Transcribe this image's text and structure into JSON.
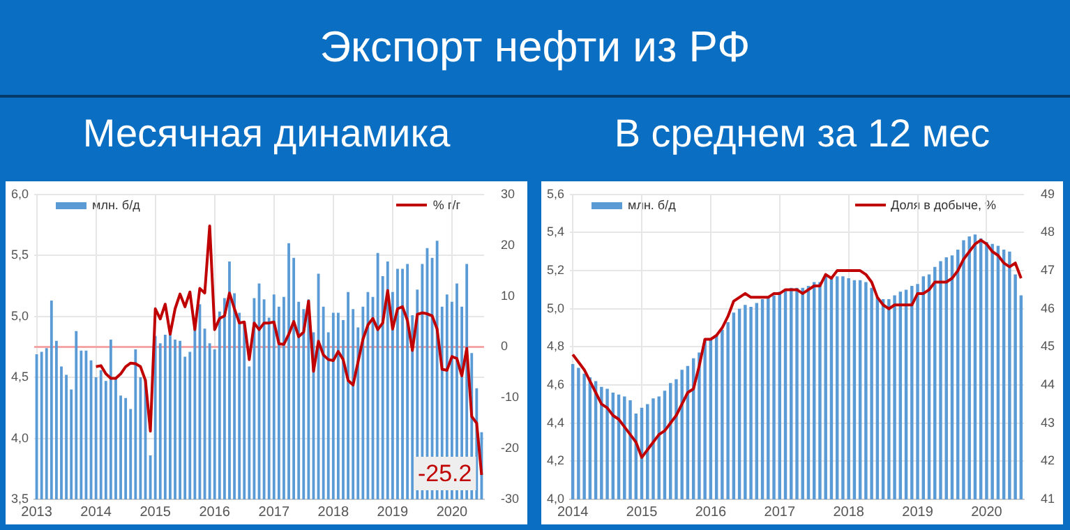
{
  "chart_data": [
    {
      "type": "bar",
      "title": "Экспорт нефти из РФ",
      "subtitle": "Месячная динамика",
      "categories": [
        "2013",
        null,
        null,
        null,
        null,
        null,
        null,
        null,
        null,
        null,
        null,
        null,
        "2014",
        null,
        null,
        null,
        null,
        null,
        null,
        null,
        null,
        null,
        null,
        null,
        "2015",
        null,
        null,
        null,
        null,
        null,
        null,
        null,
        null,
        null,
        null,
        null,
        "2016",
        null,
        null,
        null,
        null,
        null,
        null,
        null,
        null,
        null,
        null,
        null,
        "2017",
        null,
        null,
        null,
        null,
        null,
        null,
        null,
        null,
        null,
        null,
        null,
        "2018",
        null,
        null,
        null,
        null,
        null,
        null,
        null,
        null,
        null,
        null,
        null,
        "2019",
        null,
        null,
        null,
        null,
        null,
        null,
        null,
        null,
        null,
        null,
        null,
        "2020",
        null,
        null,
        null,
        null,
        null,
        null
      ],
      "series": [
        {
          "name": "млн. б/д",
          "type": "bar",
          "color": "#5b9bd5",
          "values": [
            4.69,
            4.71,
            4.74,
            5.13,
            4.8,
            4.59,
            4.52,
            4.4,
            4.88,
            4.72,
            4.72,
            4.64,
            4.5,
            4.56,
            4.47,
            4.81,
            4.5,
            4.35,
            4.33,
            4.24,
            4.73,
            4.5,
            4.48,
            3.86,
            4.84,
            4.78,
            4.85,
            4.87,
            4.81,
            4.8,
            4.67,
            4.71,
            4.9,
            5.1,
            4.9,
            4.78,
            4.73,
            5.04,
            5.15,
            5.45,
            5.19,
            5.03,
            4.95,
            4.59,
            5.15,
            5.27,
            5.14,
            4.99,
            5.18,
            5.08,
            5.16,
            5.6,
            5.48,
            5.12,
            5.06,
            5.14,
            4.87,
            5.35,
            5.08,
            4.87,
            5.03,
            5.03,
            4.97,
            5.2,
            5.06,
            4.91,
            5.08,
            5.2,
            5.16,
            5.52,
            5.33,
            5.45,
            5.2,
            5.39,
            5.39,
            5.43,
            5.01,
            5.22,
            5.43,
            5.56,
            5.48,
            5.62,
            5.08,
            5.18,
            5.12,
            5.27,
            5.08,
            5.43,
            4.7,
            4.41,
            4.05
          ]
        },
        {
          "name": "% г/г",
          "type": "line",
          "axis": "y2",
          "color": "#c00000",
          "values": [
            null,
            null,
            null,
            null,
            null,
            null,
            null,
            null,
            null,
            null,
            null,
            null,
            -3.9,
            -3.7,
            -5.3,
            -6.2,
            -6.2,
            -5.3,
            -3.9,
            -3.2,
            -3.3,
            -3.9,
            -6.6,
            -16.6,
            7.5,
            5.5,
            8.4,
            2.5,
            7.5,
            10.4,
            7.9,
            10.8,
            3.4,
            11.5,
            10.6,
            23.8,
            3.4,
            5.6,
            6.1,
            10.6,
            7.5,
            4.7,
            4.9,
            -2.5,
            4.7,
            3.4,
            4.7,
            4.7,
            4.9,
            0.6,
            0.5,
            2.5,
            5.0,
            2.0,
            2.9,
            9.0,
            -4.8,
            1.1,
            -1.6,
            -2.5,
            -2.7,
            -0.9,
            -2.5,
            -6.6,
            -7.5,
            -3.0,
            1.5,
            4.3,
            5.6,
            3.4,
            4.7,
            11.1,
            3.5,
            7.5,
            7.9,
            5.2,
            -0.7,
            6.4,
            6.7,
            6.5,
            6.1,
            3.5,
            -4.4,
            -4.6,
            -1.9,
            -2.3,
            -5.7,
            -0.3,
            -13.7,
            -15.0,
            -25.2
          ]
        }
      ],
      "ylim": [
        3.5,
        6.0
      ],
      "yticks": [
        {
          "value": 3.5,
          "label": "3,5"
        },
        {
          "value": 4.0,
          "label": "4,0"
        },
        {
          "value": 4.5,
          "label": "4,5"
        },
        {
          "value": 5.0,
          "label": "5,0"
        },
        {
          "value": 5.5,
          "label": "5,5"
        },
        {
          "value": 6.0,
          "label": "6,0"
        }
      ],
      "y2lim": [
        -30,
        30
      ],
      "y2ticks": [
        -30,
        -20,
        -10,
        0,
        10,
        20,
        30
      ],
      "ref_lines": [
        {
          "axis": "y2",
          "value": 0,
          "color": "#f4a6a6"
        }
      ],
      "annotations": [
        "-25.2"
      ],
      "grid": true,
      "legend": "top",
      "marker": "none",
      "line_style": "solid"
    },
    {
      "type": "bar",
      "subtitle": "В среднем за 12 мес",
      "categories": [
        "2014",
        null,
        null,
        null,
        null,
        null,
        null,
        null,
        null,
        null,
        null,
        null,
        "2015",
        null,
        null,
        null,
        null,
        null,
        null,
        null,
        null,
        null,
        null,
        null,
        "2016",
        null,
        null,
        null,
        null,
        null,
        null,
        null,
        null,
        null,
        null,
        null,
        "2017",
        null,
        null,
        null,
        null,
        null,
        null,
        null,
        null,
        null,
        null,
        null,
        "2018",
        null,
        null,
        null,
        null,
        null,
        null,
        null,
        null,
        null,
        null,
        null,
        "2019",
        null,
        null,
        null,
        null,
        null,
        null,
        null,
        null,
        null,
        null,
        null,
        "2020",
        null,
        null,
        null,
        null,
        null,
        null
      ],
      "series": [
        {
          "name": "млн. б/д",
          "type": "bar",
          "color": "#5b9bd5",
          "values": [
            4.71,
            4.69,
            4.66,
            4.64,
            4.62,
            4.59,
            4.58,
            4.56,
            4.55,
            4.54,
            4.52,
            4.45,
            4.48,
            4.5,
            4.53,
            4.54,
            4.57,
            4.61,
            4.63,
            4.68,
            4.7,
            4.74,
            4.77,
            4.84,
            4.84,
            4.86,
            4.89,
            4.93,
            4.98,
            5.0,
            5.02,
            5.01,
            5.03,
            5.05,
            5.06,
            5.07,
            5.09,
            5.1,
            5.11,
            5.11,
            5.11,
            5.12,
            5.14,
            5.14,
            5.18,
            5.17,
            5.17,
            5.17,
            5.16,
            5.15,
            5.15,
            5.14,
            5.11,
            5.06,
            5.05,
            5.05,
            5.07,
            5.09,
            5.1,
            5.12,
            5.13,
            5.17,
            5.18,
            5.22,
            5.25,
            5.27,
            5.28,
            5.31,
            5.36,
            5.38,
            5.39,
            5.37,
            5.35,
            5.34,
            5.33,
            5.31,
            5.3,
            5.18,
            5.07
          ]
        },
        {
          "name": "Доля в добыче, %",
          "type": "line",
          "axis": "y2",
          "color": "#c00000",
          "values": [
            44.8,
            44.6,
            44.4,
            44.1,
            43.8,
            43.5,
            43.4,
            43.2,
            43.1,
            42.9,
            42.7,
            42.5,
            42.1,
            42.3,
            42.5,
            42.7,
            42.8,
            43.0,
            43.2,
            43.5,
            43.8,
            43.9,
            44.5,
            45.2,
            45.2,
            45.3,
            45.5,
            45.8,
            46.2,
            46.3,
            46.4,
            46.3,
            46.3,
            46.3,
            46.3,
            46.4,
            46.4,
            46.5,
            46.5,
            46.5,
            46.4,
            46.5,
            46.6,
            46.6,
            46.9,
            46.8,
            47.0,
            47.0,
            47.0,
            47.0,
            47.0,
            46.9,
            46.7,
            46.3,
            46.1,
            46.0,
            46.1,
            46.1,
            46.1,
            46.1,
            46.4,
            46.4,
            46.5,
            46.7,
            46.7,
            46.7,
            46.8,
            47.0,
            47.3,
            47.5,
            47.7,
            47.8,
            47.7,
            47.5,
            47.4,
            47.2,
            47.1,
            47.2,
            46.8
          ]
        }
      ],
      "ylim": [
        4.0,
        5.6
      ],
      "yticks": [
        {
          "value": 4.0,
          "label": "4,0"
        },
        {
          "value": 4.2,
          "label": "4,2"
        },
        {
          "value": 4.4,
          "label": "4,4"
        },
        {
          "value": 4.6,
          "label": "4,6"
        },
        {
          "value": 4.8,
          "label": "4,8"
        },
        {
          "value": 5.0,
          "label": "5,0"
        },
        {
          "value": 5.2,
          "label": "5,2"
        },
        {
          "value": 5.4,
          "label": "5,4"
        },
        {
          "value": 5.6,
          "label": "5,6"
        }
      ],
      "y2lim": [
        41,
        49
      ],
      "y2ticks": [
        41,
        42,
        43,
        44,
        45,
        46,
        47,
        48,
        49
      ],
      "grid": true,
      "legend": "top",
      "marker": "none",
      "line_style": "solid"
    }
  ]
}
